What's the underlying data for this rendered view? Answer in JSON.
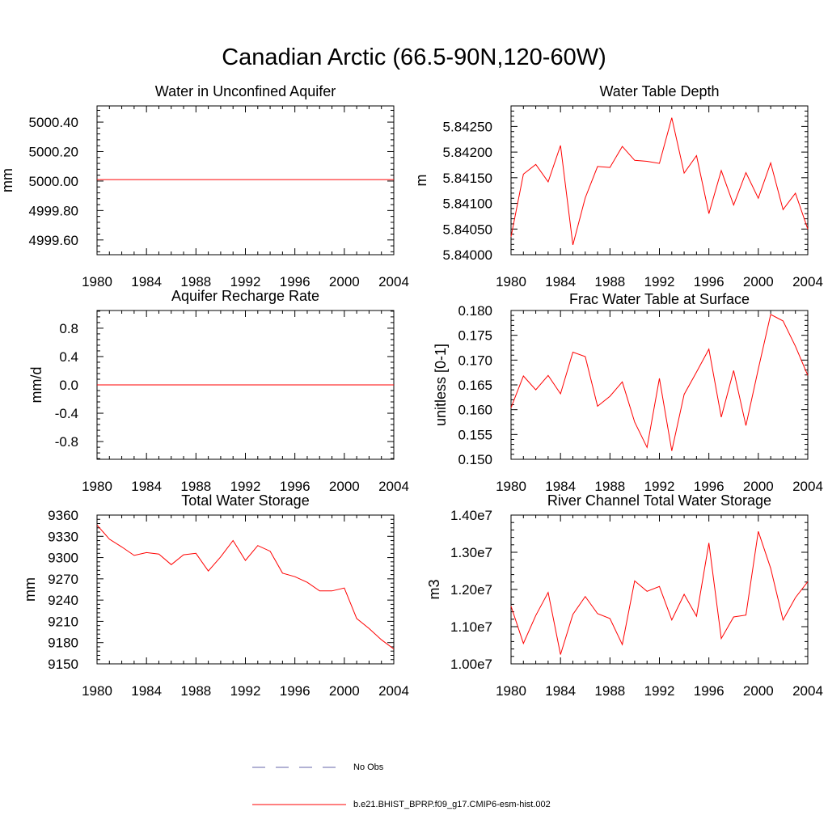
{
  "figure": {
    "title": "Canadian Arctic (66.5-90N,120-60W)",
    "line_color": "#ff0000",
    "obs_color": "#6666aa"
  },
  "legend": {
    "entries": [
      {
        "label": "No Obs",
        "style": "dashed",
        "color": "#6666aa"
      },
      {
        "label": "b.e21.BHIST_BPRP.f09_g17.CMIP6-esm-hist.002",
        "style": "solid",
        "color": "#ff0000"
      }
    ]
  },
  "chart_data": [
    {
      "type": "line",
      "title": "Water in Unconfined Aquifer",
      "ylabel": "mm",
      "xlim": [
        1980,
        2004
      ],
      "ylim": [
        4999.5,
        5000.51
      ],
      "x_ticks": [
        "1980",
        "1984",
        "1988",
        "1992",
        "1996",
        "2000",
        "2004"
      ],
      "y_ticks": [
        "4999.60",
        "4999.80",
        "5000.00",
        "5000.20",
        "5000.40"
      ],
      "y_tick_values": [
        4999.6,
        4999.8,
        5000.0,
        5000.2,
        5000.4
      ],
      "x": [
        1980,
        2004
      ],
      "y": [
        5000.01,
        5000.01
      ]
    },
    {
      "type": "line",
      "title": "Water Table Depth",
      "ylabel": "m",
      "xlim": [
        1980,
        2004
      ],
      "ylim": [
        5.84,
        5.8429
      ],
      "x_ticks": [
        "1980",
        "1984",
        "1988",
        "1992",
        "1996",
        "2000",
        "2004"
      ],
      "y_ticks": [
        "5.84000",
        "5.84050",
        "5.84100",
        "5.84150",
        "5.84200",
        "5.84250"
      ],
      "y_tick_values": [
        5.84,
        5.8405,
        5.841,
        5.8415,
        5.842,
        5.8425
      ],
      "x": [
        1980,
        1981,
        1982,
        1983,
        1984,
        1985,
        1986,
        1987,
        1988,
        1989,
        1990,
        1991,
        1992,
        1993,
        1994,
        1995,
        1996,
        1997,
        1998,
        1999,
        2000,
        2001,
        2002,
        2003,
        2004
      ],
      "y": [
        5.84035,
        5.84157,
        5.84176,
        5.84142,
        5.84213,
        5.84019,
        5.84111,
        5.84172,
        5.8417,
        5.84211,
        5.84184,
        5.84182,
        5.84178,
        5.84267,
        5.84159,
        5.84193,
        5.8408,
        5.84164,
        5.84097,
        5.8416,
        5.8411,
        5.84179,
        5.84088,
        5.8412,
        5.8405
      ]
    },
    {
      "type": "line",
      "title": "Aquifer Recharge Rate",
      "ylabel": "mm/d",
      "xlim": [
        1980,
        2004
      ],
      "ylim": [
        -1.05,
        1.05
      ],
      "x_ticks": [
        "1980",
        "1984",
        "1988",
        "1992",
        "1996",
        "2000",
        "2004"
      ],
      "y_ticks": [
        "-0.8",
        "-0.4",
        "0.0",
        "0.4",
        "0.8"
      ],
      "y_tick_values": [
        -0.8,
        -0.4,
        0.0,
        0.4,
        0.8
      ],
      "x": [
        1980,
        2004
      ],
      "y": [
        0.0,
        0.0
      ]
    },
    {
      "type": "line",
      "title": "Frac Water Table at Surface",
      "ylabel": "unitless [0-1]",
      "xlim": [
        1980,
        2004
      ],
      "ylim": [
        0.15,
        0.18
      ],
      "x_ticks": [
        "1980",
        "1984",
        "1988",
        "1992",
        "1996",
        "2000",
        "2004"
      ],
      "y_ticks": [
        "0.150",
        "0.155",
        "0.160",
        "0.165",
        "0.170",
        "0.175",
        "0.180"
      ],
      "y_tick_values": [
        0.15,
        0.155,
        0.16,
        0.165,
        0.17,
        0.175,
        0.18
      ],
      "x": [
        1980,
        1981,
        1982,
        1983,
        1984,
        1985,
        1986,
        1987,
        1988,
        1989,
        1990,
        1991,
        1992,
        1993,
        1994,
        1995,
        1996,
        1997,
        1998,
        1999,
        2000,
        2001,
        2002,
        2003,
        2004
      ],
      "y": [
        0.1604,
        0.1668,
        0.164,
        0.1669,
        0.1632,
        0.1716,
        0.1707,
        0.1607,
        0.1627,
        0.1656,
        0.1575,
        0.1524,
        0.1663,
        0.1517,
        0.1631,
        0.1676,
        0.1722,
        0.1585,
        0.1679,
        0.1568,
        0.1682,
        0.1792,
        0.1779,
        0.1728,
        0.1669
      ]
    },
    {
      "type": "line",
      "title": "Total Water Storage",
      "ylabel": "mm",
      "xlim": [
        1980,
        2004
      ],
      "ylim": [
        9150,
        9360
      ],
      "x_ticks": [
        "1980",
        "1984",
        "1988",
        "1992",
        "1996",
        "2000",
        "2004"
      ],
      "y_ticks": [
        "9150",
        "9180",
        "9210",
        "9240",
        "9270",
        "9300",
        "9330",
        "9360"
      ],
      "y_tick_values": [
        9150,
        9180,
        9210,
        9240,
        9270,
        9300,
        9330,
        9360
      ],
      "x": [
        1980,
        1981,
        1982,
        1983,
        1984,
        1985,
        1986,
        1987,
        1988,
        1989,
        1990,
        1991,
        1992,
        1993,
        1994,
        1995,
        1996,
        1997,
        1998,
        1999,
        2000,
        2001,
        2002,
        2003,
        2004
      ],
      "y": [
        9346,
        9326,
        9315,
        9303,
        9307,
        9305,
        9290,
        9304,
        9306,
        9281,
        9301,
        9324,
        9296,
        9317,
        9309,
        9278,
        9273,
        9265,
        9253,
        9253,
        9257,
        9214,
        9200,
        9184,
        9171
      ]
    },
    {
      "type": "line",
      "title": "River Channel Total Water Storage",
      "ylabel": "m3",
      "xlim": [
        1980,
        2004
      ],
      "ylim": [
        10000000,
        14000000
      ],
      "x_ticks": [
        "1980",
        "1984",
        "1988",
        "1992",
        "1996",
        "2000",
        "2004"
      ],
      "y_ticks": [
        "1.00e7",
        "1.10e7",
        "1.20e7",
        "1.30e7",
        "1.40e7"
      ],
      "y_tick_values": [
        10000000,
        11000000,
        12000000,
        13000000,
        14000000
      ],
      "x": [
        1980,
        1981,
        1982,
        1983,
        1984,
        1985,
        1986,
        1987,
        1988,
        1989,
        1990,
        1991,
        1992,
        1993,
        1994,
        1995,
        1996,
        1997,
        1998,
        1999,
        2000,
        2001,
        2002,
        2003,
        2004
      ],
      "y": [
        11550000,
        10550000,
        11300000,
        11920000,
        10250000,
        11330000,
        11810000,
        11350000,
        11220000,
        10520000,
        12230000,
        11950000,
        12080000,
        11180000,
        11870000,
        11280000,
        13250000,
        10680000,
        11260000,
        11310000,
        13560000,
        12570000,
        11180000,
        11780000,
        12210000
      ]
    }
  ]
}
